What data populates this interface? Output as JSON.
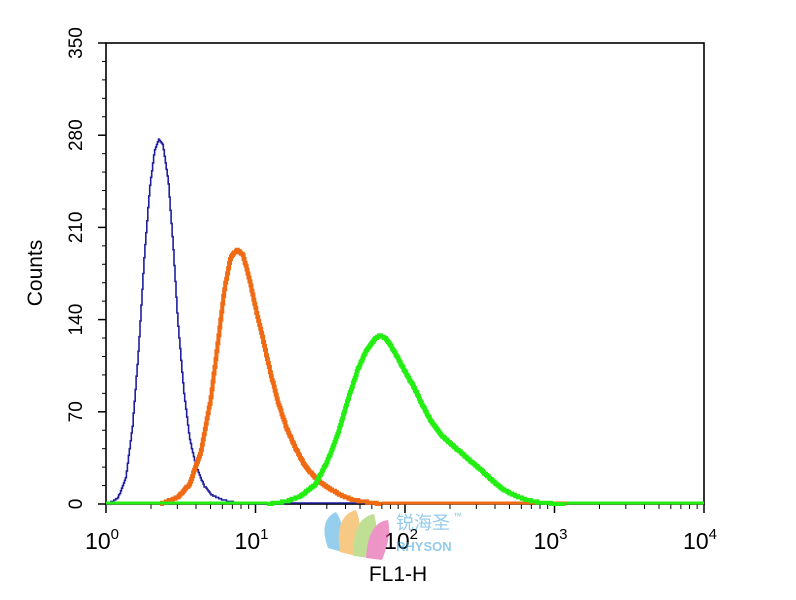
{
  "chart_data": {
    "type": "histogram",
    "xlabel": "FL1-H",
    "ylabel": "Counts",
    "x_scale": "log",
    "xlim": [
      1,
      10000
    ],
    "ylim": [
      0,
      350
    ],
    "x_ticks": [
      {
        "base": "10",
        "exp": "0",
        "value": 1
      },
      {
        "base": "10",
        "exp": "1",
        "value": 10
      },
      {
        "base": "10",
        "exp": "2",
        "value": 100
      },
      {
        "base": "10",
        "exp": "3",
        "value": 1000
      },
      {
        "base": "10",
        "exp": "4",
        "value": 10000
      }
    ],
    "y_ticks": [
      "0",
      "70",
      "140",
      "210",
      "280",
      "350"
    ],
    "legend": "none",
    "grid": false,
    "series": [
      {
        "color": "#1f1f9e",
        "line": "thin",
        "points": [
          [
            1.0,
            0
          ],
          [
            1.1,
            2
          ],
          [
            1.2,
            5
          ],
          [
            1.35,
            20
          ],
          [
            1.5,
            60
          ],
          [
            1.65,
            120
          ],
          [
            1.8,
            190
          ],
          [
            1.95,
            240
          ],
          [
            2.1,
            268
          ],
          [
            2.25,
            277
          ],
          [
            2.4,
            272
          ],
          [
            2.6,
            245
          ],
          [
            2.8,
            195
          ],
          [
            3.0,
            140
          ],
          [
            3.3,
            85
          ],
          [
            3.6,
            50
          ],
          [
            4.0,
            28
          ],
          [
            4.5,
            14
          ],
          [
            5.0,
            7
          ],
          [
            6.0,
            3
          ],
          [
            7.0,
            1.5
          ],
          [
            9.0,
            0.5
          ],
          [
            12.0,
            0.2
          ],
          [
            16.0,
            0
          ]
        ]
      },
      {
        "color": "#f06a14",
        "line": "thick",
        "points": [
          [
            2.3,
            0
          ],
          [
            3.0,
            5
          ],
          [
            3.6,
            15
          ],
          [
            4.3,
            40
          ],
          [
            5.0,
            80
          ],
          [
            5.6,
            125
          ],
          [
            6.2,
            165
          ],
          [
            6.8,
            188
          ],
          [
            7.5,
            193
          ],
          [
            8.2,
            189
          ],
          [
            9.0,
            172
          ],
          [
            10.0,
            148
          ],
          [
            11.0,
            128
          ],
          [
            12.5,
            100
          ],
          [
            14.0,
            78
          ],
          [
            16.0,
            58
          ],
          [
            18.5,
            42
          ],
          [
            21.0,
            30
          ],
          [
            24.0,
            22
          ],
          [
            28.0,
            15
          ],
          [
            33.0,
            10
          ],
          [
            38.0,
            6
          ],
          [
            45.0,
            3
          ],
          [
            55.0,
            1.5
          ],
          [
            70.0,
            0
          ]
        ]
      },
      {
        "color": "#22ee11",
        "line": "thick",
        "points": [
          [
            12.0,
            0
          ],
          [
            16.0,
            2
          ],
          [
            20.0,
            6
          ],
          [
            25.0,
            15
          ],
          [
            30.0,
            32
          ],
          [
            36.0,
            56
          ],
          [
            42.0,
            82
          ],
          [
            48.0,
            102
          ],
          [
            55.0,
            117
          ],
          [
            62.0,
            125
          ],
          [
            68.0,
            128
          ],
          [
            75.0,
            125
          ],
          [
            85.0,
            115
          ],
          [
            100.0,
            100
          ],
          [
            115.0,
            88
          ],
          [
            130.0,
            75
          ],
          [
            150.0,
            62
          ],
          [
            175.0,
            52
          ],
          [
            200.0,
            46
          ],
          [
            230.0,
            40
          ],
          [
            270.0,
            33
          ],
          [
            320.0,
            26
          ],
          [
            380.0,
            18
          ],
          [
            450.0,
            11
          ],
          [
            550.0,
            6
          ],
          [
            650.0,
            3
          ],
          [
            800.0,
            1
          ],
          [
            1000.0,
            0.3
          ],
          [
            1200.0,
            0
          ]
        ]
      }
    ]
  },
  "watermark": {
    "chinese": "锐海圣",
    "tm": "™",
    "brand": "RHYSON"
  }
}
